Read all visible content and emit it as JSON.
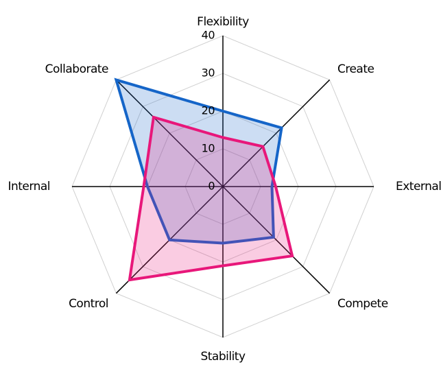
{
  "chart_data": {
    "type": "radar",
    "categories": [
      "Flexibility",
      "Create",
      "External",
      "Compete",
      "Stability",
      "Control",
      "Internal",
      "Collaborate"
    ],
    "series": [
      {
        "color": "#1565c8",
        "values": [
          20,
          22,
          13,
          19,
          15,
          20,
          20,
          40
        ]
      },
      {
        "color": "#e8177a",
        "values": [
          13,
          15,
          14,
          26,
          21,
          35,
          21,
          26
        ]
      }
    ],
    "ylim": [
      0,
      40
    ],
    "yticks": [
      0,
      10,
      20,
      30,
      40
    ],
    "grid": true
  }
}
